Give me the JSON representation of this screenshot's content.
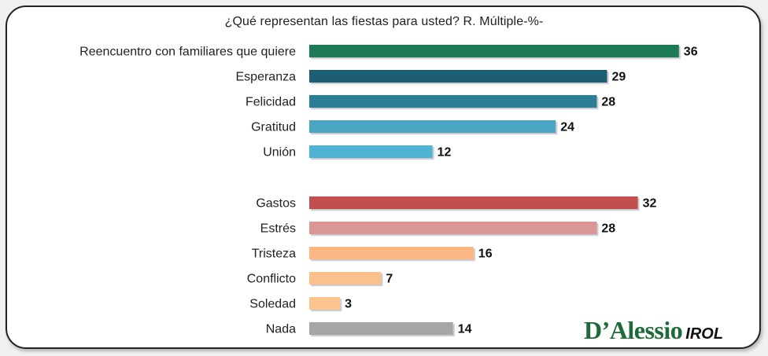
{
  "chart_data": {
    "type": "bar",
    "orientation": "horizontal",
    "title": "¿Qué representan las fiestas para usted? R. Múltiple-%-",
    "categories": [
      "Reencuentro con familiares que quiere",
      "Esperanza",
      "Felicidad",
      "Gratitud",
      "Unión",
      "Gastos",
      "Estrés",
      "Tristeza",
      "Conflicto",
      "Soledad",
      "Nada"
    ],
    "values": [
      36,
      29,
      28,
      24,
      12,
      32,
      28,
      16,
      7,
      3,
      14
    ],
    "colors": [
      "#1f7a56",
      "#1f5f74",
      "#2b7f96",
      "#4ba6c4",
      "#4fb3d4",
      "#c0504d",
      "#d99694",
      "#fab683",
      "#fbc08c",
      "#fcc48e",
      "#a6a6a6"
    ],
    "groups": [
      [
        "Reencuentro con familiares que quiere",
        "Esperanza",
        "Felicidad",
        "Gratitud",
        "Unión"
      ],
      [
        "Gastos",
        "Estrés",
        "Tristeza",
        "Conflicto",
        "Soledad",
        "Nada"
      ]
    ],
    "xlim": [
      0,
      40
    ],
    "grid": false,
    "data_labels": true
  },
  "logo": {
    "brand": "D’Alessio",
    "suffix": "IROL"
  }
}
